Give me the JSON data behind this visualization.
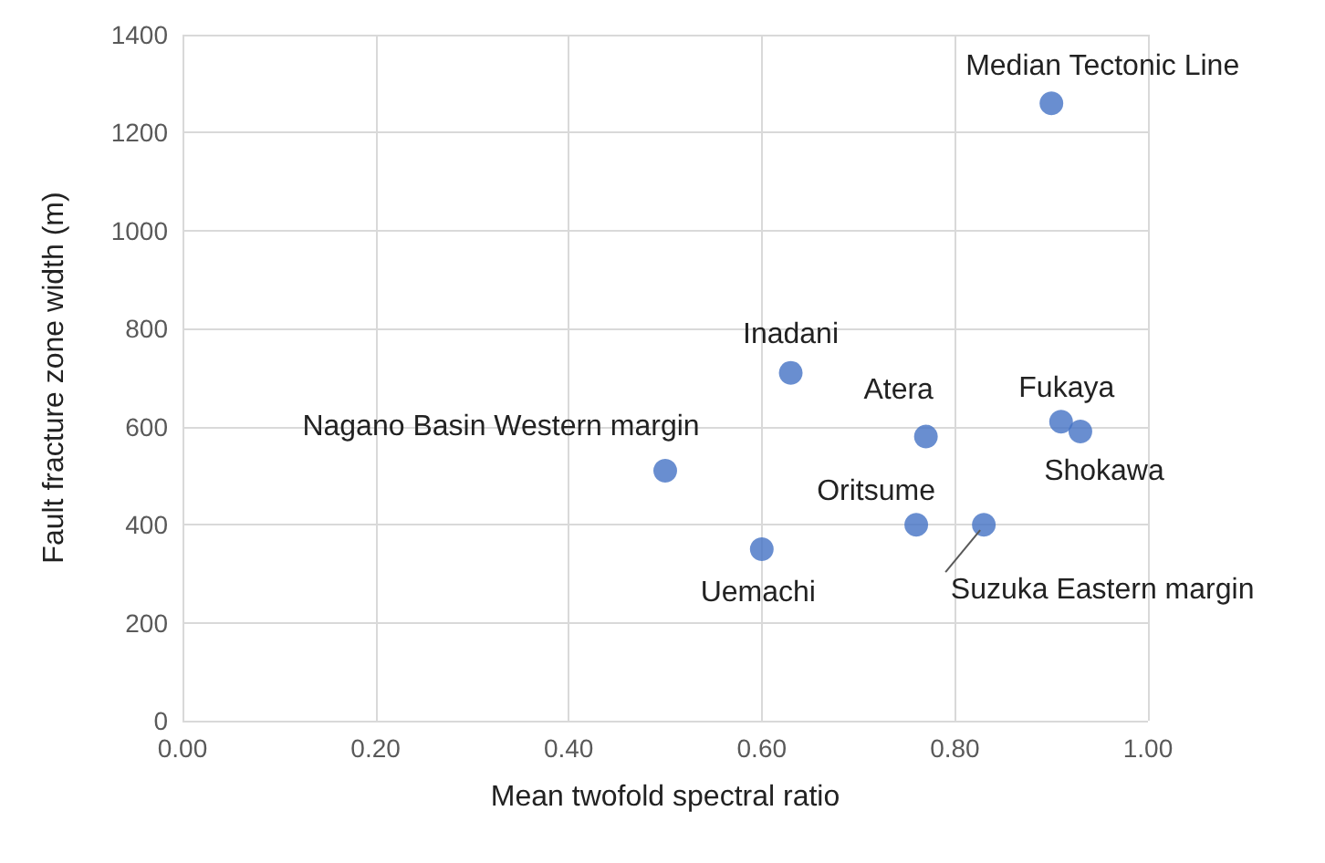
{
  "chart_data": {
    "type": "scatter",
    "xlabel": "Mean twofold spectral ratio",
    "ylabel": "Fault fracture zone width (m)",
    "x": [
      0.9,
      0.63,
      0.77,
      0.91,
      0.93,
      0.5,
      0.76,
      0.83,
      0.6
    ],
    "series": [
      {
        "color": "#4472c4",
        "values": [
          1260,
          710,
          580,
          610,
          590,
          510,
          400,
          400,
          350
        ]
      }
    ],
    "xlim": [
      0,
      1
    ],
    "xticks": [
      {
        "value": 0,
        "label": "0.00"
      },
      {
        "value": 0.2,
        "label": "0.20"
      },
      {
        "value": 0.4,
        "label": "0.40"
      },
      {
        "value": 0.6,
        "label": "0.60"
      },
      {
        "value": 0.8,
        "label": "0.80"
      },
      {
        "value": 1,
        "label": "1.00"
      }
    ],
    "ylim": [
      0,
      1400
    ],
    "yticks": [
      0,
      200,
      400,
      600,
      800,
      1000,
      1200,
      1400
    ],
    "grid": true,
    "marker": "circle",
    "annotations": [
      {
        "text": "Median Tectonic Line",
        "x": 0.9,
        "y": 1260
      },
      {
        "text": "Inadani",
        "x": 0.63,
        "y": 710
      },
      {
        "text": "Atera",
        "x": 0.77,
        "y": 580
      },
      {
        "text": "Fukaya",
        "x": 0.91,
        "y": 610
      },
      {
        "text": "Shokawa",
        "x": 0.93,
        "y": 590
      },
      {
        "text": "Nagano Basin Western margin",
        "x": 0.5,
        "y": 510
      },
      {
        "text": "Oritsume",
        "x": 0.76,
        "y": 400
      },
      {
        "text": "Suzuka Eastern margin",
        "x": 0.83,
        "y": 400
      },
      {
        "text": "Uemachi",
        "x": 0.6,
        "y": 350
      }
    ]
  }
}
